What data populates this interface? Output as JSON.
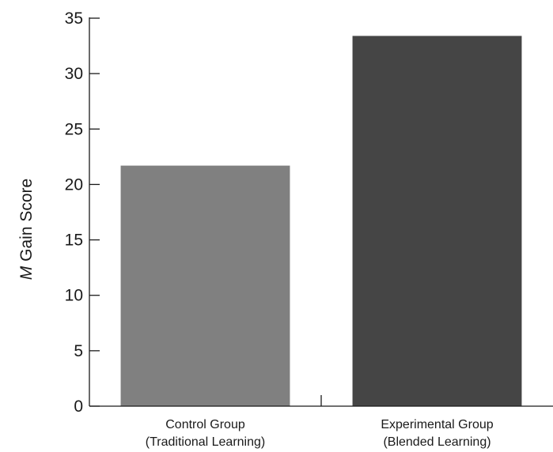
{
  "chart_data": {
    "type": "bar",
    "categories": [
      [
        "Control Group",
        "(Traditional Learning)"
      ],
      [
        "Experimental Group",
        "(Blended Learning)"
      ]
    ],
    "values": [
      21.7,
      33.4
    ],
    "bar_colors": [
      "#808080",
      "#454545"
    ],
    "ylabel_italic": "M",
    "ylabel_rest": " Gain Score",
    "xlabel": "",
    "title": "",
    "ylim": [
      0,
      35
    ],
    "yticks": [
      0,
      5,
      10,
      15,
      20,
      25,
      30,
      35
    ],
    "grid": false,
    "legend": "none"
  }
}
